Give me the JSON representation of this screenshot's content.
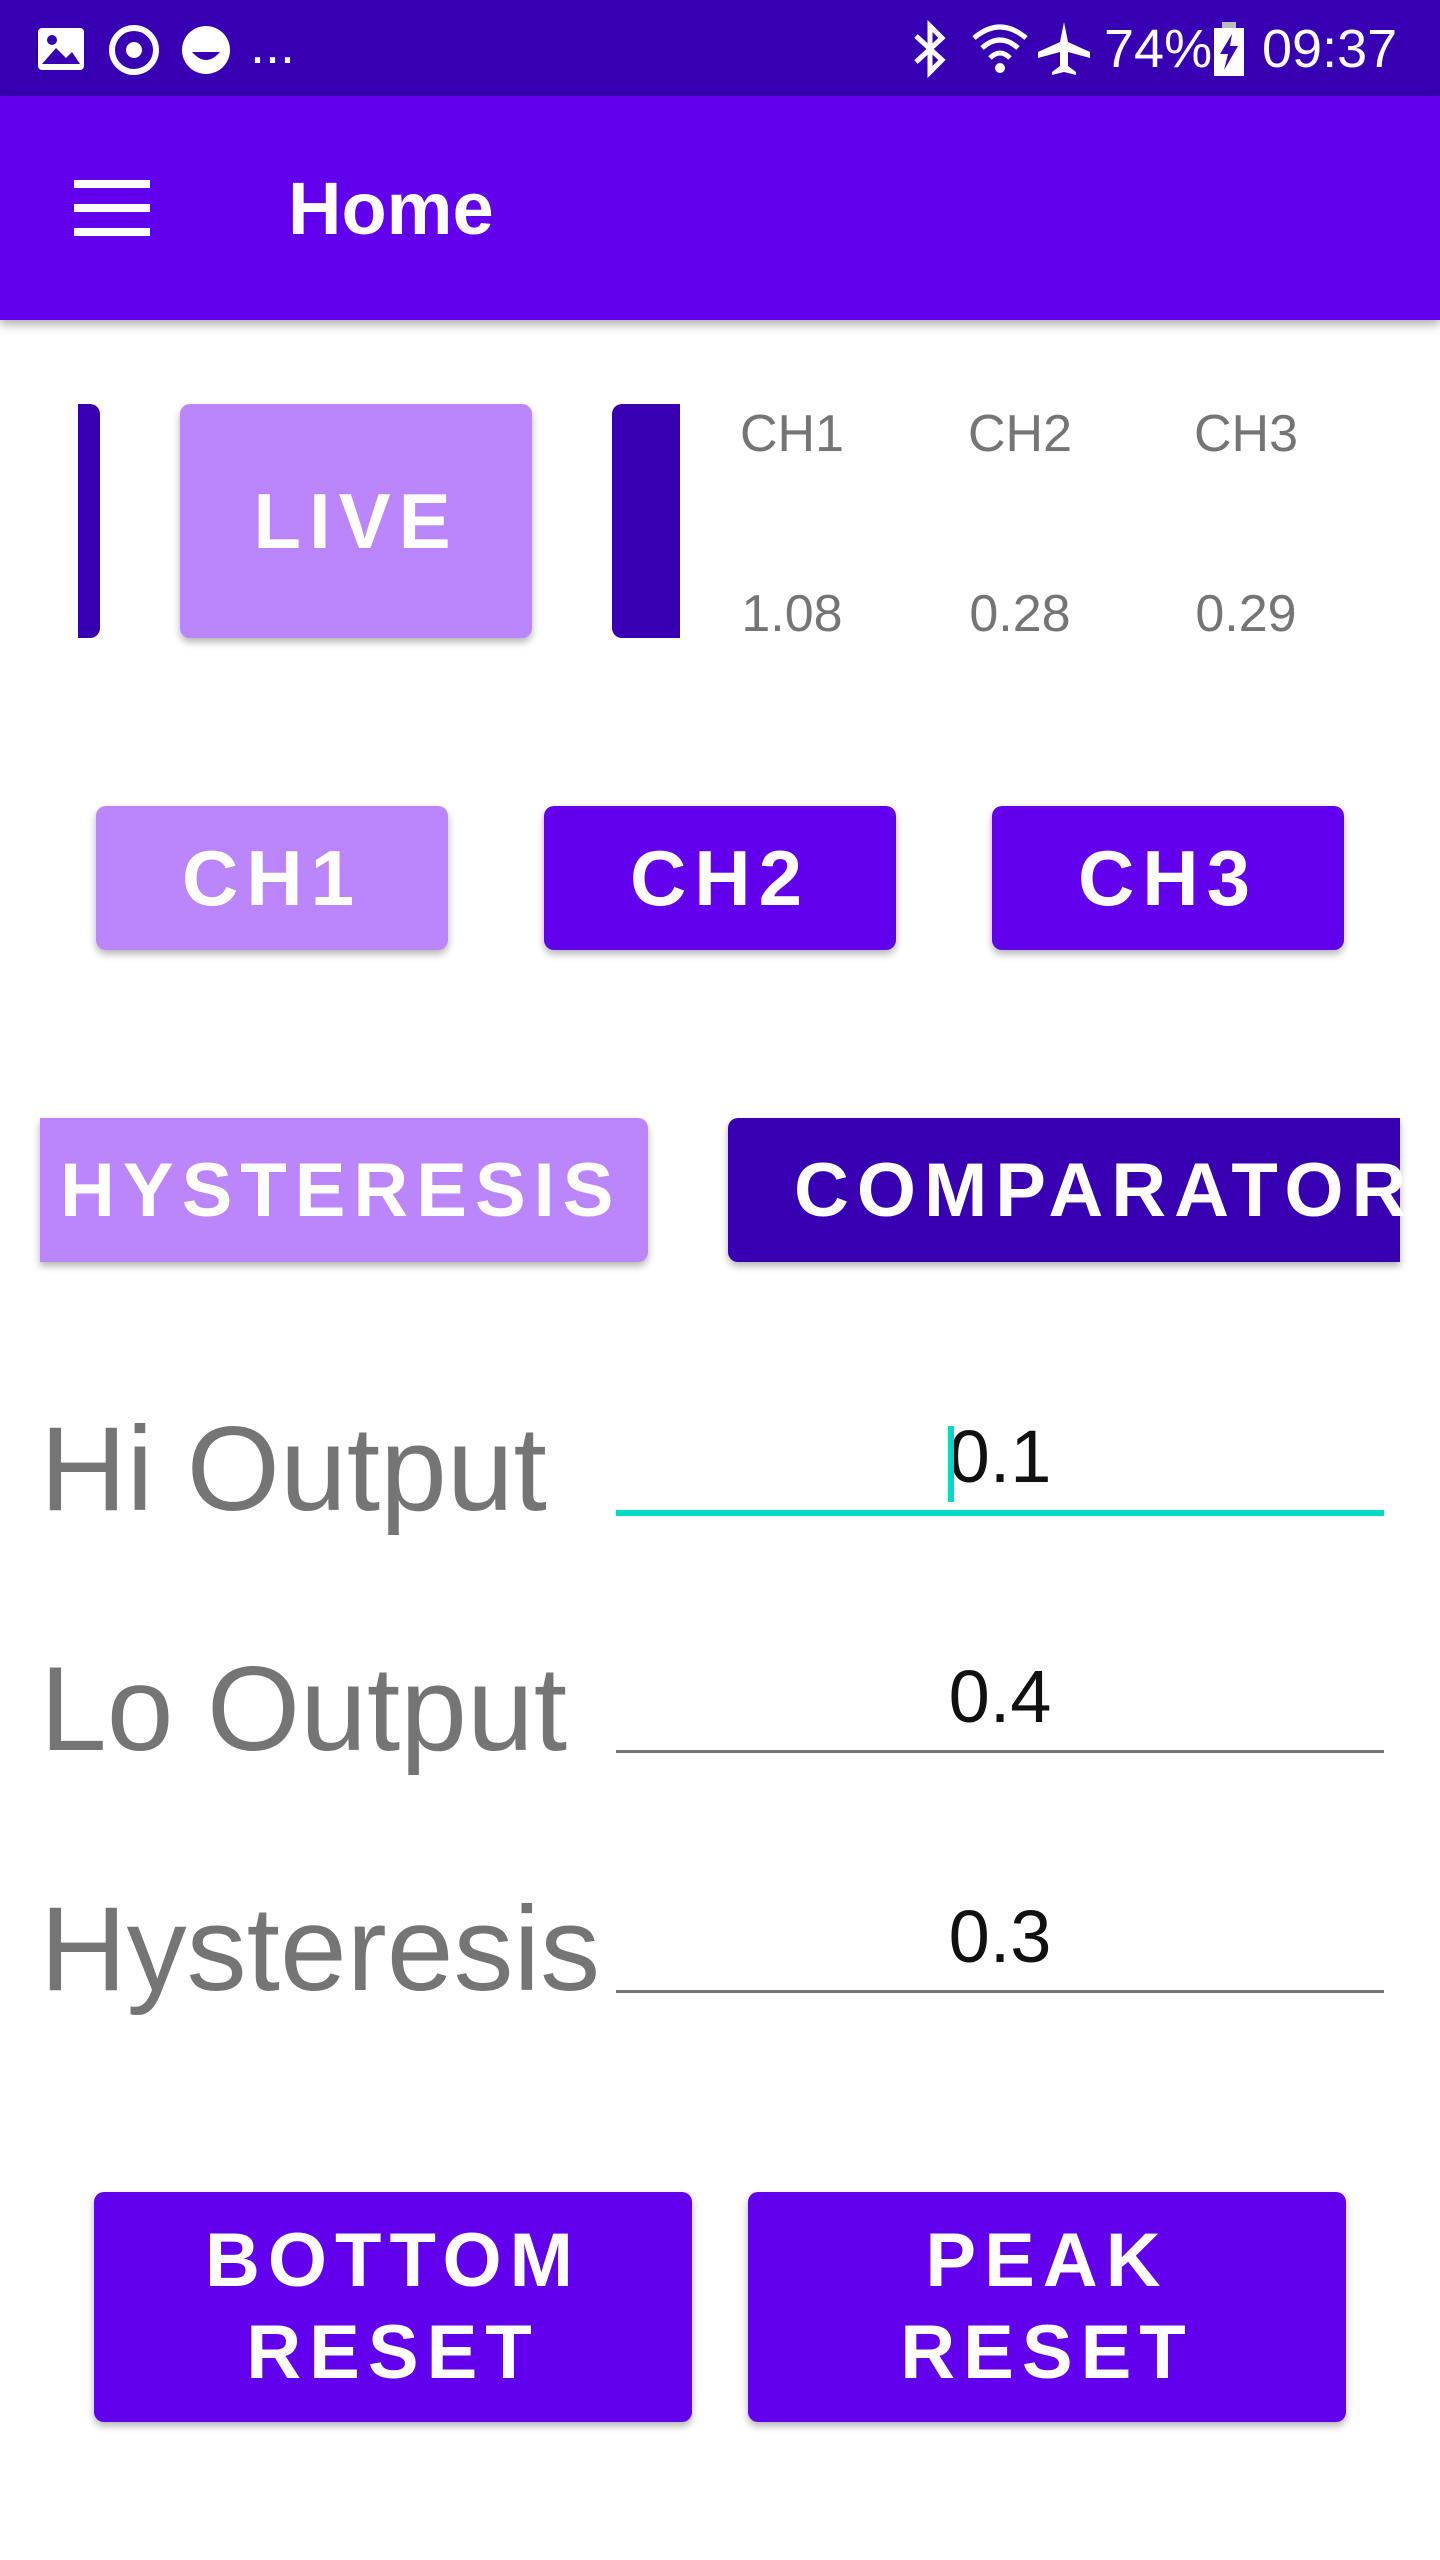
{
  "status_bar": {
    "battery": "74%",
    "time": "09:37",
    "more": "...",
    "icons": [
      "image-icon",
      "sync-icon",
      "emoji-icon",
      "bluetooth-icon",
      "wifi-icon",
      "airplane-icon",
      "battery-charging-icon"
    ]
  },
  "app_bar": {
    "title": "Home",
    "menu_icon": "hamburger-menu-icon"
  },
  "live": {
    "button_label": "LIVE"
  },
  "readings": {
    "headers": [
      "CH1",
      "CH2",
      "CH3"
    ],
    "values": [
      "1.08",
      "0.28",
      "0.29"
    ]
  },
  "channels": {
    "ch1": "CH1",
    "ch2": "CH2",
    "ch3": "CH3"
  },
  "modes": {
    "hysteresis": "HYSTERESIS",
    "comparator": "COMPARATOR"
  },
  "fields": {
    "hi_output": {
      "label": "Hi Output",
      "value": "0.1"
    },
    "lo_output": {
      "label": "Lo Output",
      "value": "0.4"
    },
    "hysteresis": {
      "label": "Hysteresis",
      "value": "0.3"
    }
  },
  "actions": {
    "bottom_reset": [
      "BOTTOM",
      "RESET"
    ],
    "peak_reset": [
      "PEAK",
      "RESET"
    ]
  },
  "colors": {
    "primary": "#6200ee",
    "primary_dark": "#3700b3",
    "primary_light": "#bb86fc",
    "focus": "#03dac5"
  }
}
